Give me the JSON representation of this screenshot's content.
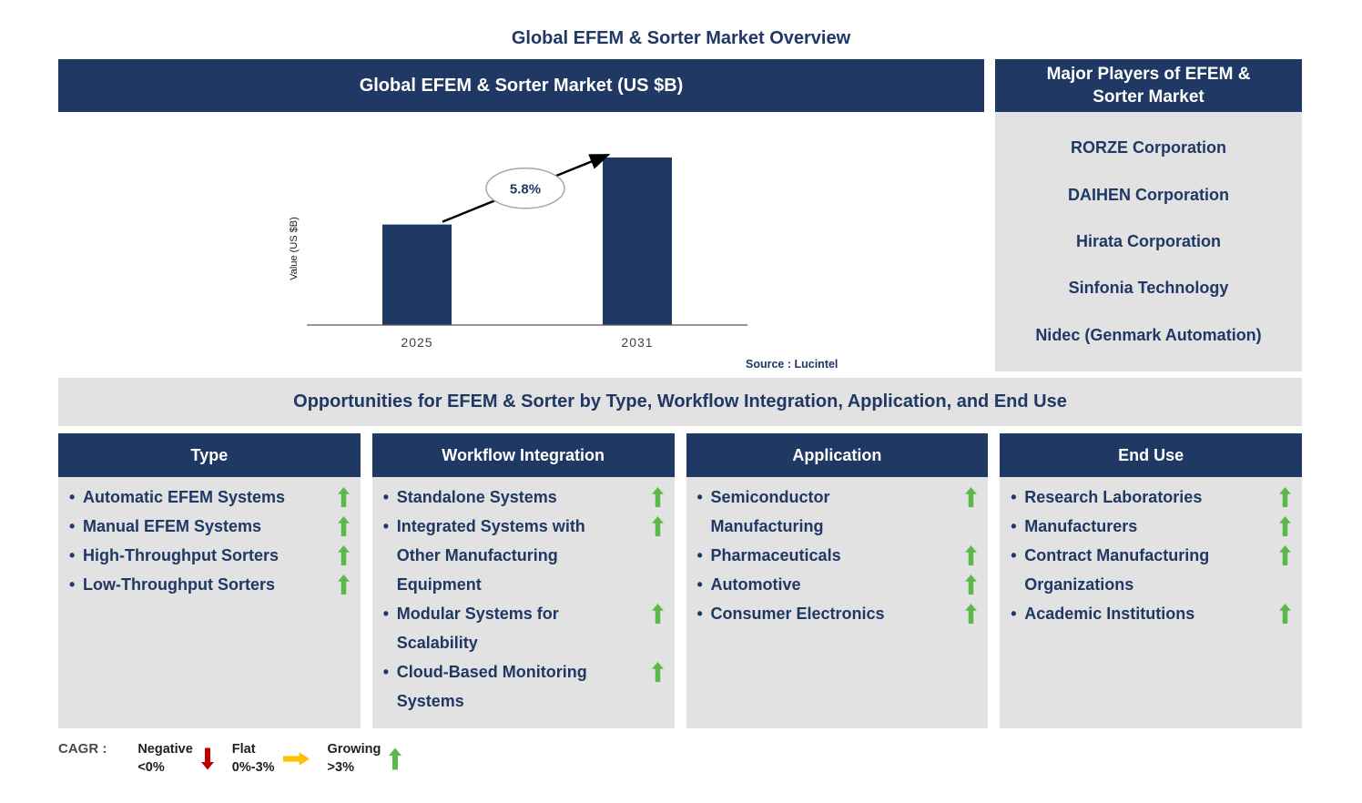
{
  "page_title": "Global EFEM & Sorter Market Overview",
  "chart_data": {
    "type": "bar",
    "title": "Global EFEM & Sorter Market (US $B)",
    "ylabel": "Value (US $B)",
    "xlabel": "",
    "categories": [
      "2025",
      "2031"
    ],
    "values": [
      0.6,
      1.0
    ],
    "values_note": "relative bar heights; y-axis has no numeric tick labels in source image",
    "annotation": "5.8%",
    "annotation_meaning": "CAGR from 2025 to 2031",
    "bar_color": "#1F3864",
    "grid": false,
    "legend_position": "none",
    "source": "Source : Lucintel"
  },
  "major_players": {
    "header": "Major Players of EFEM & Sorter Market",
    "items": [
      "RORZE Corporation",
      "DAIHEN Corporation",
      "Hirata Corporation",
      "Sinfonia Technology",
      "Nidec (Genmark Automation)"
    ]
  },
  "opportunities": {
    "band_title": "Opportunities for EFEM & Sorter by Type, Workflow Integration, Application, and End Use",
    "columns": [
      {
        "title": "Type",
        "items": [
          {
            "label": "Automatic EFEM Systems",
            "trend": "growing"
          },
          {
            "label": "Manual EFEM Systems",
            "trend": "growing"
          },
          {
            "label": "High-Throughput Sorters",
            "trend": "growing"
          },
          {
            "label": "Low-Throughput Sorters",
            "trend": "growing"
          }
        ]
      },
      {
        "title": "Workflow Integration",
        "items": [
          {
            "label": "Standalone Systems",
            "trend": "growing"
          },
          {
            "label": "Integrated Systems with Other Manufacturing Equipment",
            "trend": "growing"
          },
          {
            "label": "Modular Systems for Scalability",
            "trend": "growing"
          },
          {
            "label": "Cloud-Based Monitoring Systems",
            "trend": "growing"
          }
        ]
      },
      {
        "title": "Application",
        "items": [
          {
            "label": "Semiconductor Manufacturing",
            "trend": "growing"
          },
          {
            "label": "Pharmaceuticals",
            "trend": "growing"
          },
          {
            "label": "Automotive",
            "trend": "growing"
          },
          {
            "label": "Consumer Electronics",
            "trend": "growing"
          }
        ]
      },
      {
        "title": "End Use",
        "items": [
          {
            "label": "Research Laboratories",
            "trend": "growing"
          },
          {
            "label": "Manufacturers",
            "trend": "growing"
          },
          {
            "label": "Contract Manufacturing Organizations",
            "trend": "growing"
          },
          {
            "label": "Academic Institutions",
            "trend": "growing"
          }
        ]
      }
    ]
  },
  "cagr_legend": {
    "label": "CAGR :",
    "items": [
      {
        "label": "Negative",
        "range": "<0%",
        "trend": "negative",
        "icon": "down-arrow",
        "color": "#C00000"
      },
      {
        "label": "Flat",
        "range": "0%-3%",
        "trend": "flat",
        "icon": "right-arrow",
        "color": "#FFC000"
      },
      {
        "label": "Growing",
        "range": ">3%",
        "trend": "growing",
        "icon": "up-arrow",
        "color": "#5CB947"
      }
    ]
  },
  "colors": {
    "navy": "#1F3864",
    "panel_gray": "#E2E2E2",
    "growing_green": "#5CB947",
    "negative_red": "#C00000",
    "flat_yellow": "#FFC000"
  }
}
